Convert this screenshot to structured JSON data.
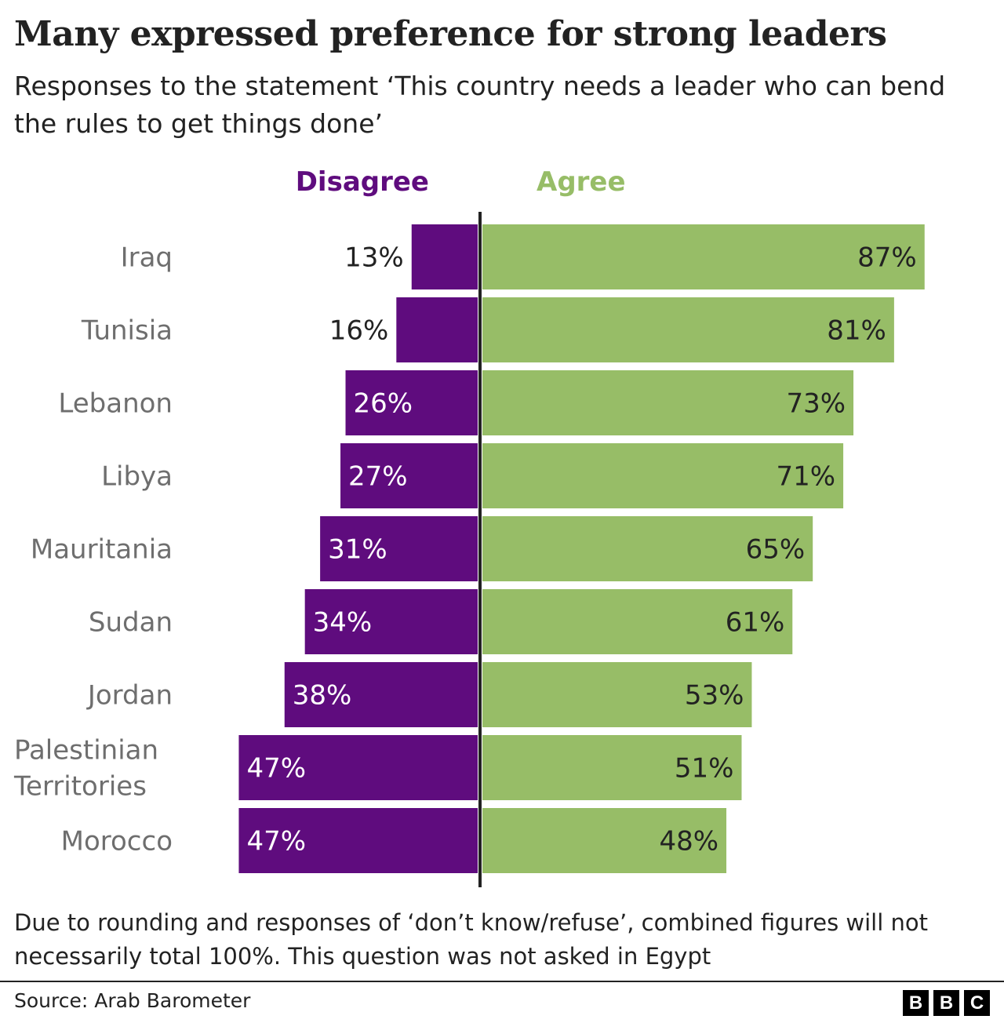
{
  "title": "Many expressed preference for strong leaders",
  "subtitle": "Responses to the statement ‘This country needs a leader who can bend the rules to get things done’",
  "note": "Due to rounding and responses of ‘don’t know/refuse’, combined figures will not necessarily total 100%. This question was not asked in Egypt",
  "source": "Source: Arab Barometer",
  "logo": [
    "B",
    "B",
    "C"
  ],
  "colors": {
    "disagree": "#5f0c7e",
    "agree": "#97bd67",
    "axis": "#222222",
    "category_label": "#6e6e6e"
  },
  "chart_data": {
    "type": "bar",
    "orientation": "horizontal-diverging",
    "categories": [
      "Iraq",
      "Tunisia",
      "Lebanon",
      "Libya",
      "Mauritania",
      "Sudan",
      "Jordan",
      "Palestinian Territories",
      "Morocco"
    ],
    "category_lines": [
      [
        "Iraq"
      ],
      [
        "Tunisia"
      ],
      [
        "Lebanon"
      ],
      [
        "Libya"
      ],
      [
        "Mauritania"
      ],
      [
        "Sudan"
      ],
      [
        "Jordan"
      ],
      [
        "Palestinian",
        "Territories"
      ],
      [
        "Morocco"
      ]
    ],
    "series": [
      {
        "name": "Disagree",
        "direction": "left",
        "values": [
          13,
          16,
          26,
          27,
          31,
          34,
          38,
          47,
          47
        ],
        "labels": [
          "13%",
          "16%",
          "26%",
          "27%",
          "31%",
          "34%",
          "38%",
          "47%",
          "47%"
        ]
      },
      {
        "name": "Agree",
        "direction": "right",
        "values": [
          87,
          81,
          73,
          71,
          65,
          61,
          53,
          51,
          48
        ],
        "labels": [
          "87%",
          "81%",
          "73%",
          "71%",
          "65%",
          "61%",
          "53%",
          "51%",
          "48%"
        ]
      }
    ],
    "unit": "%",
    "legend_placement": "top",
    "grid": false
  }
}
